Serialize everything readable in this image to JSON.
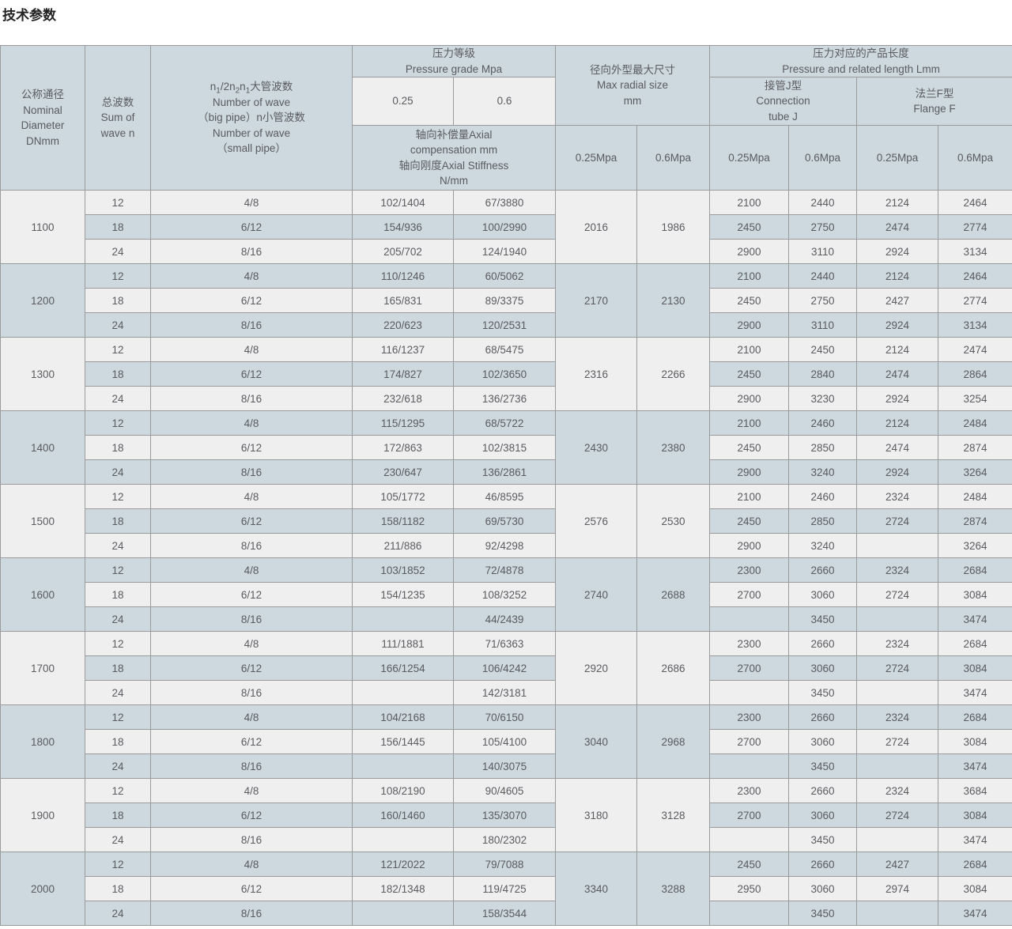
{
  "title": "技术参数",
  "colors": {
    "stripe_light": "#f0eff0",
    "stripe_dark": "#cdd8df",
    "header_bg": "#cdd8df",
    "border": "#9b9b9b",
    "text": "#5a5c60",
    "title_text": "#222222"
  },
  "table": {
    "header": {
      "nominal_diameter": "公称通径\nNominal\nDiameter\nDNmm",
      "sum_of_wave": "总波数\nSum of\nwave n",
      "wave_number_p1": "n",
      "wave_number_s1": "1",
      "wave_number_p2": "/2n",
      "wave_number_s2": "2",
      "wave_number_p3": "n",
      "wave_number_s3": "1",
      "wave_number_p4": "大管波数",
      "wave_number_rest": "Number of wave\n（big pipe）n小管波数\nNumber of wave\n（small pipe）",
      "pressure_grade": "压力等级\nPressure grade Mpa",
      "pressure_025": "0.25",
      "pressure_06": "0.6",
      "axial": "轴向补偿量Axial\ncompensation mm\n轴向刚度Axial Stiffness\nN/mm",
      "max_radial": "径向外型最大尺寸\nMax radial size\nmm",
      "radial_025": "0.25Mpa",
      "radial_06": "0.6Mpa",
      "length_header": "压力对应的产品长度\nPressure and related length Lmm",
      "connection_j": "接管J型\nConnection\ntube J",
      "flange_f": "法兰F型\nFlange F",
      "j_025": "0.25Mpa",
      "j_06": "0.6Mpa",
      "f_025": "0.25Mpa",
      "f_06": "0.6Mpa"
    },
    "groups": [
      {
        "dn": "1100",
        "radial_025": "2016",
        "radial_06": "1986",
        "rows": [
          {
            "waves": "12",
            "wave_split": "4/8",
            "axial_025": "102/1404",
            "axial_06": "67/3880",
            "j_025": "2100",
            "j_06": "2440",
            "f_025": "2124",
            "f_06": "2464"
          },
          {
            "waves": "18",
            "wave_split": "6/12",
            "axial_025": "154/936",
            "axial_06": "100/2990",
            "j_025": "2450",
            "j_06": "2750",
            "f_025": "2474",
            "f_06": "2774"
          },
          {
            "waves": "24",
            "wave_split": "8/16",
            "axial_025": "205/702",
            "axial_06": "124/1940",
            "j_025": "2900",
            "j_06": "3110",
            "f_025": "2924",
            "f_06": "3134"
          }
        ]
      },
      {
        "dn": "1200",
        "radial_025": "2170",
        "radial_06": "2130",
        "rows": [
          {
            "waves": "12",
            "wave_split": "4/8",
            "axial_025": "110/1246",
            "axial_06": "60/5062",
            "j_025": "2100",
            "j_06": "2440",
            "f_025": "2124",
            "f_06": "2464"
          },
          {
            "waves": "18",
            "wave_split": "6/12",
            "axial_025": "165/831",
            "axial_06": "89/3375",
            "j_025": "2450",
            "j_06": "2750",
            "f_025": "2427",
            "f_06": "2774"
          },
          {
            "waves": "24",
            "wave_split": "8/16",
            "axial_025": "220/623",
            "axial_06": "120/2531",
            "j_025": "2900",
            "j_06": "3110",
            "f_025": "2924",
            "f_06": "3134"
          }
        ]
      },
      {
        "dn": "1300",
        "radial_025": "2316",
        "radial_06": "2266",
        "rows": [
          {
            "waves": "12",
            "wave_split": "4/8",
            "axial_025": "116/1237",
            "axial_06": "68/5475",
            "j_025": "2100",
            "j_06": "2450",
            "f_025": "2124",
            "f_06": "2474"
          },
          {
            "waves": "18",
            "wave_split": "6/12",
            "axial_025": "174/827",
            "axial_06": "102/3650",
            "j_025": "2450",
            "j_06": "2840",
            "f_025": "2474",
            "f_06": "2864"
          },
          {
            "waves": "24",
            "wave_split": "8/16",
            "axial_025": "232/618",
            "axial_06": "136/2736",
            "j_025": "2900",
            "j_06": "3230",
            "f_025": "2924",
            "f_06": "3254"
          }
        ]
      },
      {
        "dn": "1400",
        "radial_025": "2430",
        "radial_06": "2380",
        "rows": [
          {
            "waves": "12",
            "wave_split": "4/8",
            "axial_025": "115/1295",
            "axial_06": "68/5722",
            "j_025": "2100",
            "j_06": "2460",
            "f_025": "2124",
            "f_06": "2484"
          },
          {
            "waves": "18",
            "wave_split": "6/12",
            "axial_025": "172/863",
            "axial_06": "102/3815",
            "j_025": "2450",
            "j_06": "2850",
            "f_025": "2474",
            "f_06": "2874"
          },
          {
            "waves": "24",
            "wave_split": "8/16",
            "axial_025": "230/647",
            "axial_06": "136/2861",
            "j_025": "2900",
            "j_06": "3240",
            "f_025": "2924",
            "f_06": "3264"
          }
        ]
      },
      {
        "dn": "1500",
        "radial_025": "2576",
        "radial_06": "2530",
        "rows": [
          {
            "waves": "12",
            "wave_split": "4/8",
            "axial_025": "105/1772",
            "axial_06": "46/8595",
            "j_025": "2100",
            "j_06": "2460",
            "f_025": "2324",
            "f_06": "2484"
          },
          {
            "waves": "18",
            "wave_split": "6/12",
            "axial_025": "158/1182",
            "axial_06": "69/5730",
            "j_025": "2450",
            "j_06": "2850",
            "f_025": "2724",
            "f_06": "2874"
          },
          {
            "waves": "24",
            "wave_split": "8/16",
            "axial_025": "211/886",
            "axial_06": "92/4298",
            "j_025": "2900",
            "j_06": "3240",
            "f_025": "",
            "f_06": "3264"
          }
        ]
      },
      {
        "dn": "1600",
        "radial_025": "2740",
        "radial_06": "2688",
        "rows": [
          {
            "waves": "12",
            "wave_split": "4/8",
            "axial_025": "103/1852",
            "axial_06": "72/4878",
            "j_025": "2300",
            "j_06": "2660",
            "f_025": "2324",
            "f_06": "2684"
          },
          {
            "waves": "18",
            "wave_split": "6/12",
            "axial_025": "154/1235",
            "axial_06": "108/3252",
            "j_025": "2700",
            "j_06": "3060",
            "f_025": "2724",
            "f_06": "3084"
          },
          {
            "waves": "24",
            "wave_split": "8/16",
            "axial_025": "",
            "axial_06": "44/2439",
            "j_025": "",
            "j_06": "3450",
            "f_025": "",
            "f_06": "3474"
          }
        ]
      },
      {
        "dn": "1700",
        "radial_025": "2920",
        "radial_06": "2686",
        "rows": [
          {
            "waves": "12",
            "wave_split": "4/8",
            "axial_025": "111/1881",
            "axial_06": "71/6363",
            "j_025": "2300",
            "j_06": "2660",
            "f_025": "2324",
            "f_06": "2684"
          },
          {
            "waves": "18",
            "wave_split": "6/12",
            "axial_025": "166/1254",
            "axial_06": "106/4242",
            "j_025": "2700",
            "j_06": "3060",
            "f_025": "2724",
            "f_06": "3084"
          },
          {
            "waves": "24",
            "wave_split": "8/16",
            "axial_025": "",
            "axial_06": "142/3181",
            "j_025": "",
            "j_06": "3450",
            "f_025": "",
            "f_06": "3474"
          }
        ]
      },
      {
        "dn": "1800",
        "radial_025": "3040",
        "radial_06": "2968",
        "rows": [
          {
            "waves": "12",
            "wave_split": "4/8",
            "axial_025": "104/2168",
            "axial_06": "70/6150",
            "j_025": "2300",
            "j_06": "2660",
            "f_025": "2324",
            "f_06": "2684"
          },
          {
            "waves": "18",
            "wave_split": "6/12",
            "axial_025": "156/1445",
            "axial_06": "105/4100",
            "j_025": "2700",
            "j_06": "3060",
            "f_025": "2724",
            "f_06": "3084"
          },
          {
            "waves": "24",
            "wave_split": "8/16",
            "axial_025": "",
            "axial_06": "140/3075",
            "j_025": "",
            "j_06": "3450",
            "f_025": "",
            "f_06": "3474"
          }
        ]
      },
      {
        "dn": "1900",
        "radial_025": "3180",
        "radial_06": "3128",
        "rows": [
          {
            "waves": "12",
            "wave_split": "4/8",
            "axial_025": "108/2190",
            "axial_06": "90/4605",
            "j_025": "2300",
            "j_06": "2660",
            "f_025": "2324",
            "f_06": "3684"
          },
          {
            "waves": "18",
            "wave_split": "6/12",
            "axial_025": "160/1460",
            "axial_06": "135/3070",
            "j_025": "2700",
            "j_06": "3060",
            "f_025": "2724",
            "f_06": "3084"
          },
          {
            "waves": "24",
            "wave_split": "8/16",
            "axial_025": "",
            "axial_06": "180/2302",
            "j_025": "",
            "j_06": "3450",
            "f_025": "",
            "f_06": "3474"
          }
        ]
      },
      {
        "dn": "2000",
        "radial_025": "3340",
        "radial_06": "3288",
        "rows": [
          {
            "waves": "12",
            "wave_split": "4/8",
            "axial_025": "121/2022",
            "axial_06": "79/7088",
            "j_025": "2450",
            "j_06": "2660",
            "f_025": "2427",
            "f_06": "2684"
          },
          {
            "waves": "18",
            "wave_split": "6/12",
            "axial_025": "182/1348",
            "axial_06": "119/4725",
            "j_025": "2950",
            "j_06": "3060",
            "f_025": "2974",
            "f_06": "3084"
          },
          {
            "waves": "24",
            "wave_split": "8/16",
            "axial_025": "",
            "axial_06": "158/3544",
            "j_025": "",
            "j_06": "3450",
            "f_025": "",
            "f_06": "3474"
          }
        ]
      }
    ]
  }
}
